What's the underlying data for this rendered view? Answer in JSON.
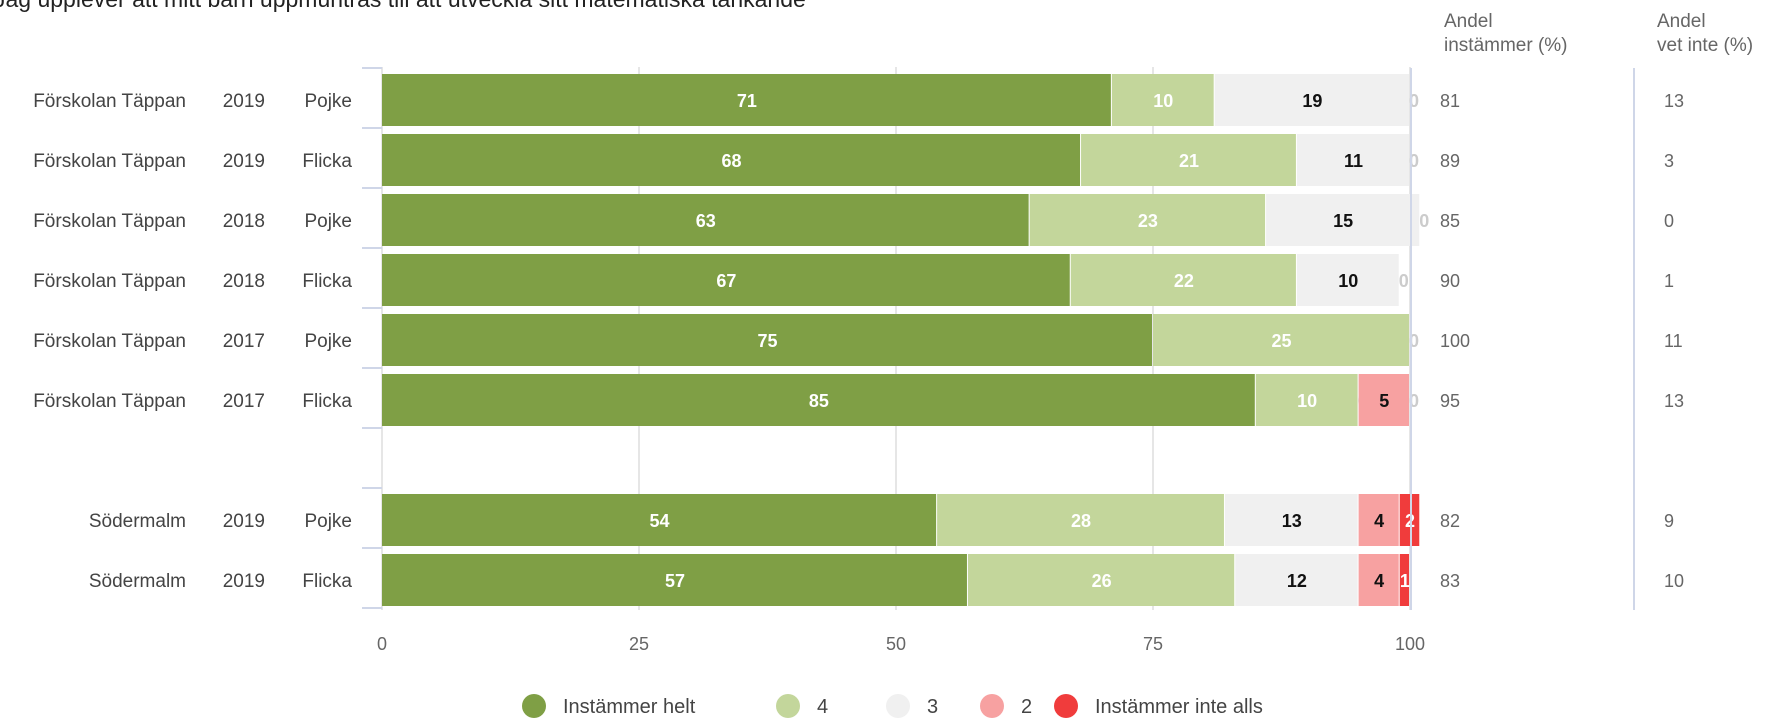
{
  "chart_data": {
    "type": "bar",
    "orientation": "horizontal",
    "stacked": true,
    "title": "Jag upplever att mitt barn uppmuntras till att utveckla sitt matematiska tänkande",
    "xlim": [
      0,
      100
    ],
    "x_ticks": [
      "0",
      "25",
      "50",
      "75",
      "100"
    ],
    "grid": true,
    "legend_position": "bottom",
    "side_headers": {
      "agree": "Andel instämmer (%)",
      "unknown": "Andel vet inte (%)"
    },
    "series": [
      {
        "name": "Instämmer helt",
        "color": "#7f9f45"
      },
      {
        "name": "4",
        "color": "#c3d69b"
      },
      {
        "name": "3",
        "color": "#f0f0f0"
      },
      {
        "name": "2",
        "color": "#f7a1a1"
      },
      {
        "name": "Instämmer inte alls",
        "color": "#f03c3c"
      }
    ],
    "rows": [
      {
        "unit": "Förskolan Täppan",
        "year": "2019",
        "gender": "Pojke",
        "values": [
          71,
          10,
          19,
          0,
          null
        ],
        "labels": [
          "71",
          "10",
          "19",
          "0",
          ""
        ],
        "agree": "81",
        "unknown": "13"
      },
      {
        "unit": "Förskolan Täppan",
        "year": "2019",
        "gender": "Flicka",
        "values": [
          68,
          21,
          11,
          0,
          null
        ],
        "labels": [
          "68",
          "21",
          "11",
          "0",
          ""
        ],
        "agree": "89",
        "unknown": "3"
      },
      {
        "unit": "Förskolan Täppan",
        "year": "2018",
        "gender": "Pojke",
        "values": [
          63,
          23,
          15,
          0,
          null
        ],
        "labels": [
          "63",
          "23",
          "15",
          "0",
          ""
        ],
        "agree": "85",
        "unknown": "0"
      },
      {
        "unit": "Förskolan Täppan",
        "year": "2018",
        "gender": "Flicka",
        "values": [
          67,
          22,
          10,
          0,
          null
        ],
        "labels": [
          "67",
          "22",
          "10",
          "0",
          ""
        ],
        "agree": "90",
        "unknown": "1"
      },
      {
        "unit": "Förskolan Täppan",
        "year": "2017",
        "gender": "Pojke",
        "values": [
          75,
          25,
          null,
          null,
          0
        ],
        "labels": [
          "75",
          "25",
          "",
          "",
          "0"
        ],
        "agree": "100",
        "unknown": "11"
      },
      {
        "unit": "Förskolan Täppan",
        "year": "2017",
        "gender": "Flicka",
        "values": [
          85,
          10,
          0,
          5,
          0
        ],
        "labels": [
          "85",
          "10",
          "0",
          "5",
          "0"
        ],
        "agree": "95",
        "unknown": "13"
      },
      {
        "spacer": true
      },
      {
        "unit": "Södermalm",
        "year": "2019",
        "gender": "Pojke",
        "values": [
          54,
          28,
          13,
          4,
          2
        ],
        "labels": [
          "54",
          "28",
          "13",
          "4",
          "2"
        ],
        "agree": "82",
        "unknown": "9"
      },
      {
        "unit": "Södermalm",
        "year": "2019",
        "gender": "Flicka",
        "values": [
          57,
          26,
          12,
          4,
          1
        ],
        "labels": [
          "57",
          "26",
          "12",
          "4",
          "1"
        ],
        "agree": "83",
        "unknown": "10"
      }
    ]
  }
}
